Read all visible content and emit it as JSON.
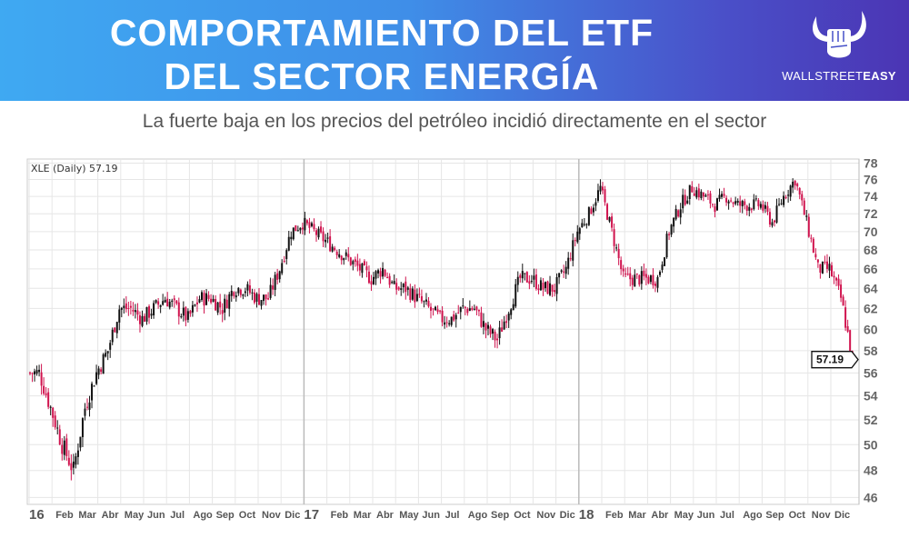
{
  "header": {
    "title_line1": "COMPORTAMIENTO DEL ETF",
    "title_line2": "DEL SECTOR ENERGÍA",
    "logo_text_light": "WALLSTREET",
    "logo_text_bold": "EASY"
  },
  "subtitle": "La fuerte baja en los precios del petróleo incidió directamente en el sector",
  "chart_data": {
    "type": "candlestick",
    "legend": "XLE (Daily) 57.19",
    "last_price_label": "57.19",
    "last_price": 57.19,
    "y_scale": "log",
    "ylim": [
      45.5,
      78.5
    ],
    "yticks": [
      46,
      48,
      50,
      52,
      54,
      56,
      58,
      60,
      62,
      64,
      66,
      68,
      70,
      72,
      74,
      76,
      78
    ],
    "xtick_labels": [
      "16",
      "Feb",
      "Mar",
      "Abr",
      "May",
      "Jun",
      "Jul",
      "Ago",
      "Sep",
      "Oct",
      "Nov",
      "Dic",
      "17",
      "Feb",
      "Mar",
      "Abr",
      "May",
      "Jun",
      "Jul",
      "Ago",
      "Sep",
      "Oct",
      "Nov",
      "Dic",
      "18",
      "Feb",
      "Mar",
      "Abr",
      "May",
      "Jun",
      "Jul",
      "Ago",
      "Sep",
      "Oct",
      "Nov",
      "Dic"
    ],
    "year_labels": [
      "16",
      "17",
      "18"
    ],
    "period": "2016-01 to 2018-12, half-month closes",
    "half_month_closes": [
      56,
      53,
      50,
      48,
      53,
      56,
      58,
      62,
      62,
      61,
      62,
      63,
      62,
      61,
      63,
      63,
      62,
      64,
      64,
      63,
      63,
      66,
      70,
      71,
      70,
      69,
      68,
      67,
      66,
      65,
      66,
      64,
      64,
      63,
      62,
      61,
      61,
      62,
      62,
      60,
      59,
      62,
      65,
      65,
      64,
      64,
      66,
      70,
      72,
      75,
      70,
      65,
      65,
      65,
      65,
      70,
      73,
      75,
      74,
      73,
      74,
      73,
      73,
      73,
      71,
      74,
      76,
      71,
      66,
      66,
      63,
      57.19
    ],
    "colors": {
      "up": "#111111",
      "down": "#d0134e",
      "grid": "#e6e6e6",
      "year_line": "#bbbbbb"
    }
  }
}
